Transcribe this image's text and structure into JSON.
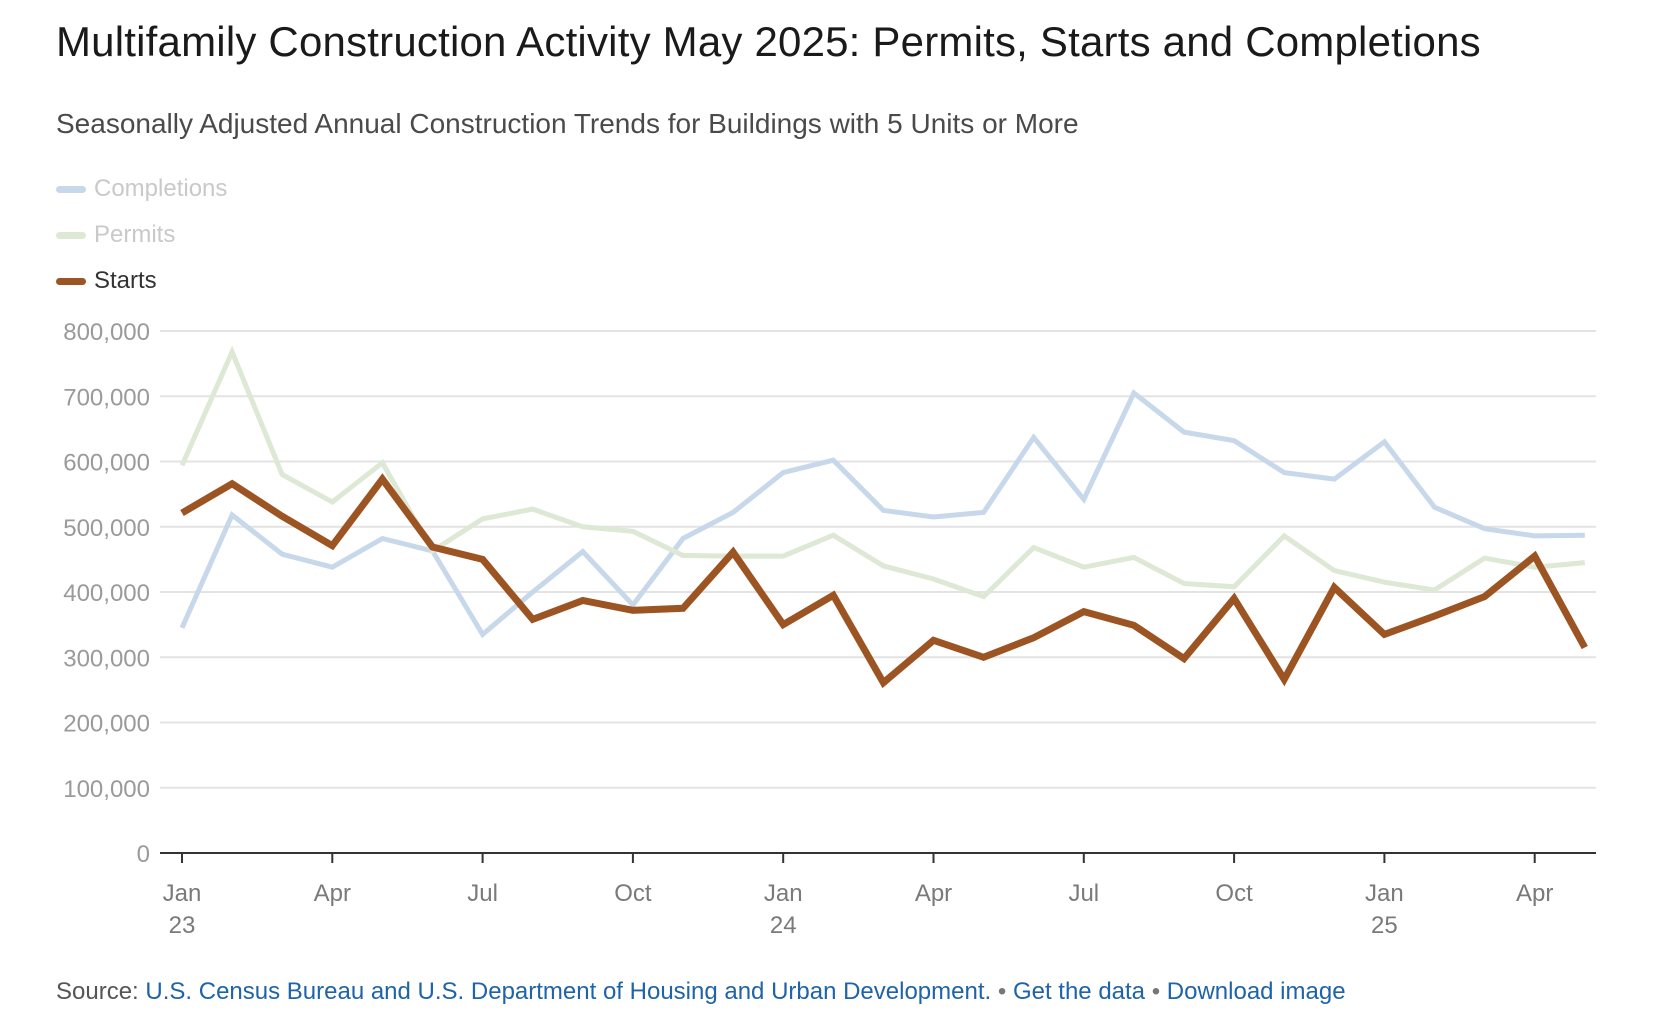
{
  "title": "Multifamily Construction Activity May 2025: Permits, Starts and Completions",
  "subtitle": "Seasonally Adjusted Annual Construction Trends for Buildings with 5 Units or More",
  "legend": [
    {
      "label": "Completions",
      "color": "#c7d8ea",
      "dimmed": true
    },
    {
      "label": "Permits",
      "color": "#dde8d5",
      "dimmed": true
    },
    {
      "label": "Starts",
      "color": "#9c5422",
      "dimmed": false
    }
  ],
  "footer": {
    "source_label": "Source:",
    "source_link": "U.S. Census Bureau and U.S. Department of Housing and Urban Development.",
    "sep": "•",
    "get_data": "Get the data",
    "download": "Download image"
  },
  "chart_data": {
    "type": "line",
    "x": [
      "2023-01",
      "2023-02",
      "2023-03",
      "2023-04",
      "2023-05",
      "2023-06",
      "2023-07",
      "2023-08",
      "2023-09",
      "2023-10",
      "2023-11",
      "2023-12",
      "2024-01",
      "2024-02",
      "2024-03",
      "2024-04",
      "2024-05",
      "2024-06",
      "2024-07",
      "2024-08",
      "2024-09",
      "2024-10",
      "2024-11",
      "2024-12",
      "2025-01",
      "2025-02",
      "2025-03",
      "2025-04",
      "2025-05"
    ],
    "ylim": [
      0,
      800000
    ],
    "yticks": [
      0,
      100000,
      200000,
      300000,
      400000,
      500000,
      600000,
      700000,
      800000
    ],
    "ytick_labels": [
      "0",
      "100,000",
      "200,000",
      "300,000",
      "400,000",
      "500,000",
      "600,000",
      "700,000",
      "800,000"
    ],
    "xticks": [
      {
        "x": "2023-01",
        "label": "Jan",
        "sublabel": "23"
      },
      {
        "x": "2023-04",
        "label": "Apr",
        "sublabel": ""
      },
      {
        "x": "2023-07",
        "label": "Jul",
        "sublabel": ""
      },
      {
        "x": "2023-10",
        "label": "Oct",
        "sublabel": ""
      },
      {
        "x": "2024-01",
        "label": "Jan",
        "sublabel": "24"
      },
      {
        "x": "2024-04",
        "label": "Apr",
        "sublabel": ""
      },
      {
        "x": "2024-07",
        "label": "Jul",
        "sublabel": ""
      },
      {
        "x": "2024-10",
        "label": "Oct",
        "sublabel": ""
      },
      {
        "x": "2025-01",
        "label": "Jan",
        "sublabel": "25"
      },
      {
        "x": "2025-04",
        "label": "Apr",
        "sublabel": ""
      }
    ],
    "grid": true,
    "series": [
      {
        "name": "Completions",
        "color": "#c7d8ea",
        "values": [
          345000,
          518000,
          458000,
          438000,
          482000,
          463000,
          335000,
          400000,
          462000,
          380000,
          482000,
          522000,
          583000,
          602000,
          525000,
          515000,
          522000,
          637000,
          542000,
          705000,
          645000,
          632000,
          583000,
          573000,
          630000,
          530000,
          497000,
          486000,
          487000
        ]
      },
      {
        "name": "Permits",
        "color": "#dde8d5",
        "values": [
          594000,
          768000,
          580000,
          538000,
          598000,
          463000,
          512000,
          527000,
          500000,
          493000,
          456000,
          455000,
          455000,
          487000,
          440000,
          420000,
          393000,
          468000,
          438000,
          453000,
          413000,
          408000,
          486000,
          433000,
          415000,
          403000,
          452000,
          438000,
          445000
        ]
      },
      {
        "name": "Starts",
        "color": "#9c5422",
        "values": [
          521000,
          566000,
          516000,
          471000,
          573000,
          469000,
          450000,
          358000,
          387000,
          372000,
          375000,
          461000,
          350000,
          395000,
          261000,
          326000,
          300000,
          330000,
          370000,
          349000,
          298000,
          390000,
          266000,
          407000,
          335000,
          363000,
          393000,
          455000,
          315000
        ]
      }
    ]
  }
}
